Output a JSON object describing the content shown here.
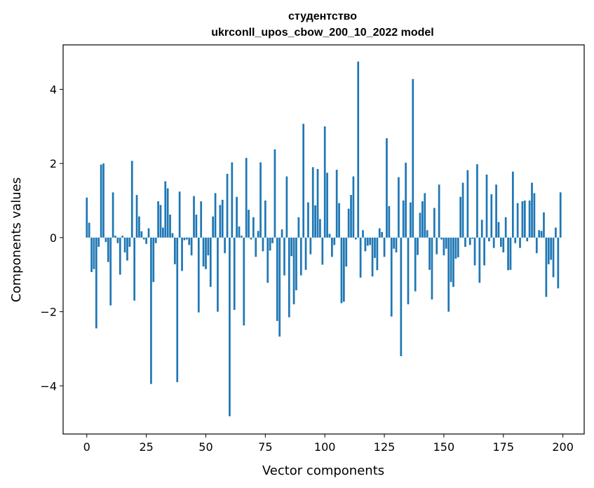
{
  "chart_data": {
    "type": "bar",
    "title": [
      "студентство",
      "ukrconll_upos_cbow_200_10_2022 model"
    ],
    "xlabel": "Vector components",
    "ylabel": "Components values",
    "xlim": [
      -9.95,
      208.95
    ],
    "ylim": [
      -5.3,
      5.2
    ],
    "xticks": [
      0,
      25,
      50,
      75,
      100,
      125,
      150,
      175,
      200
    ],
    "yticks": [
      -4,
      -2,
      0,
      2,
      4
    ],
    "ytick_labels": [
      "−4",
      "−2",
      "0",
      "2",
      "4"
    ],
    "bar_color": "#1f77b4",
    "x": [
      0,
      1,
      2,
      3,
      4,
      5,
      6,
      7,
      8,
      9,
      10,
      11,
      12,
      13,
      14,
      15,
      16,
      17,
      18,
      19,
      20,
      21,
      22,
      23,
      24,
      25,
      26,
      27,
      28,
      29,
      30,
      31,
      32,
      33,
      34,
      35,
      36,
      37,
      38,
      39,
      40,
      41,
      42,
      43,
      44,
      45,
      46,
      47,
      48,
      49,
      50,
      51,
      52,
      53,
      54,
      55,
      56,
      57,
      58,
      59,
      60,
      61,
      62,
      63,
      64,
      65,
      66,
      67,
      68,
      69,
      70,
      71,
      72,
      73,
      74,
      75,
      76,
      77,
      78,
      79,
      80,
      81,
      82,
      83,
      84,
      85,
      86,
      87,
      88,
      89,
      90,
      91,
      92,
      93,
      94,
      95,
      96,
      97,
      98,
      99,
      100,
      101,
      102,
      103,
      104,
      105,
      106,
      107,
      108,
      109,
      110,
      111,
      112,
      113,
      114,
      115,
      116,
      117,
      118,
      119,
      120,
      121,
      122,
      123,
      124,
      125,
      126,
      127,
      128,
      129,
      130,
      131,
      132,
      133,
      134,
      135,
      136,
      137,
      138,
      139,
      140,
      141,
      142,
      143,
      144,
      145,
      146,
      147,
      148,
      149,
      150,
      151,
      152,
      153,
      154,
      155,
      156,
      157,
      158,
      159,
      160,
      161,
      162,
      163,
      164,
      165,
      166,
      167,
      168,
      169,
      170,
      171,
      172,
      173,
      174,
      175,
      176,
      177,
      178,
      179,
      180,
      181,
      182,
      183,
      184,
      185,
      186,
      187,
      188,
      189,
      190,
      191,
      192,
      193,
      194,
      195,
      196,
      197,
      198,
      199
    ],
    "values": [
      1.08,
      0.4,
      -0.93,
      -0.85,
      -2.45,
      -0.25,
      1.97,
      2.0,
      -0.12,
      -0.66,
      -1.83,
      1.22,
      0.05,
      -0.15,
      -1.0,
      0.05,
      -0.4,
      -0.62,
      -0.25,
      2.07,
      -1.7,
      1.15,
      0.57,
      0.17,
      -0.05,
      -0.17,
      0.25,
      -3.95,
      -1.2,
      -0.15,
      0.98,
      0.88,
      0.27,
      1.52,
      1.33,
      0.62,
      0.12,
      -0.72,
      -3.9,
      1.24,
      -0.9,
      -0.07,
      -0.05,
      -0.2,
      -0.48,
      1.12,
      0.62,
      -2.02,
      0.98,
      -0.78,
      -0.85,
      -0.48,
      -1.33,
      0.57,
      1.2,
      -2.0,
      0.88,
      1.02,
      -0.42,
      1.72,
      -4.82,
      2.03,
      -1.95,
      1.1,
      0.3,
      0.05,
      -2.37,
      2.15,
      0.75,
      -0.05,
      0.55,
      -0.52,
      0.18,
      2.03,
      -0.37,
      1.0,
      -1.22,
      -0.35,
      -0.15,
      2.38,
      -2.25,
      -2.67,
      0.22,
      -1.02,
      1.65,
      -2.15,
      -0.5,
      -1.8,
      -1.42,
      0.55,
      -1.02,
      3.07,
      -0.87,
      0.95,
      -0.45,
      1.9,
      0.87,
      1.85,
      0.5,
      -0.73,
      3.0,
      1.75,
      0.1,
      -0.52,
      -0.2,
      1.83,
      0.93,
      -1.77,
      -1.73,
      -0.78,
      0.78,
      1.15,
      1.65,
      -0.05,
      4.75,
      -1.08,
      0.2,
      -0.37,
      -0.22,
      -0.2,
      -1.05,
      -0.55,
      -0.88,
      0.25,
      0.15,
      -0.52,
      2.68,
      0.85,
      -2.13,
      -0.3,
      -0.4,
      1.63,
      -3.2,
      1.0,
      2.02,
      -1.8,
      0.95,
      4.28,
      -1.45,
      -0.47,
      0.67,
      0.98,
      1.2,
      0.2,
      -0.87,
      -1.67,
      0.8,
      -0.45,
      1.43,
      -0.05,
      -0.48,
      -0.3,
      -2.0,
      -1.2,
      -1.33,
      -0.57,
      -0.53,
      1.1,
      1.48,
      -0.25,
      1.82,
      -0.2,
      -0.03,
      -0.75,
      1.98,
      -1.22,
      0.48,
      -0.75,
      1.7,
      -0.1,
      1.17,
      -0.28,
      1.43,
      0.42,
      -0.25,
      -0.4,
      0.55,
      -0.88,
      -0.87,
      1.78,
      -0.15,
      0.93,
      -0.28,
      0.98,
      1.0,
      -0.1,
      1.0,
      1.48,
      1.2,
      -0.42,
      0.2,
      0.18,
      0.68,
      -1.6,
      -0.72,
      -0.6,
      -1.07,
      0.27,
      -1.37,
      1.22
    ]
  }
}
